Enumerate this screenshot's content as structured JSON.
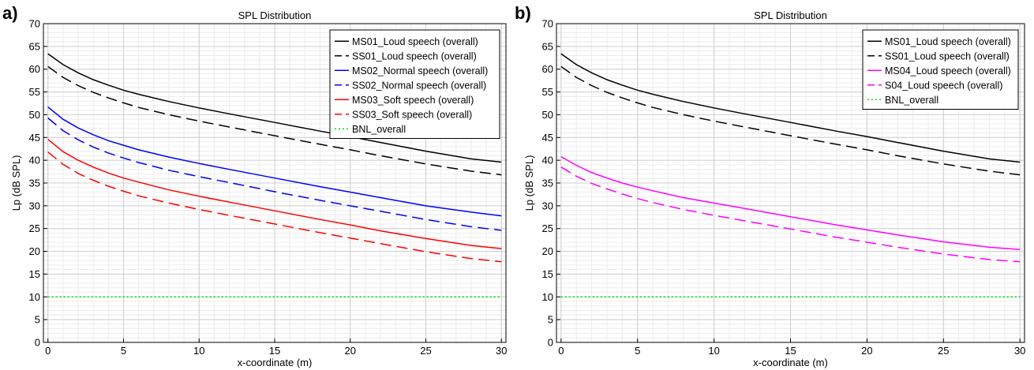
{
  "panels": [
    {
      "panel_label": "a)"
    },
    {
      "panel_label": "b)"
    }
  ],
  "chart_data": [
    {
      "type": "line",
      "title": "SPL Distribution",
      "xlabel": "x-coordinate (m)",
      "ylabel": "Lp (dB SPL)",
      "xlim": [
        -0.3,
        30.3
      ],
      "ylim": [
        0,
        70
      ],
      "xticks": [
        0,
        5,
        10,
        15,
        20,
        25,
        30
      ],
      "yticks": [
        0,
        5,
        10,
        15,
        20,
        25,
        30,
        35,
        40,
        45,
        50,
        55,
        60,
        65,
        70
      ],
      "grid": true,
      "legend_position": "top-right",
      "x": [
        0,
        1,
        2,
        3,
        4,
        5,
        6,
        8,
        10,
        12,
        15,
        18,
        20,
        22,
        25,
        28,
        30
      ],
      "series": [
        {
          "name": "MS01_Loud speech (overall)",
          "color": "#000000",
          "dash": "solid",
          "values": [
            63.4,
            61.0,
            59.2,
            57.7,
            56.5,
            55.4,
            54.5,
            52.9,
            51.5,
            50.2,
            48.3,
            46.4,
            45.2,
            43.9,
            42.0,
            40.3,
            39.6
          ]
        },
        {
          "name": "SS01_Loud speech (overall)",
          "color": "#000000",
          "dash": "dashed",
          "values": [
            60.6,
            58.2,
            56.4,
            54.9,
            53.7,
            52.6,
            51.6,
            50.0,
            48.6,
            47.3,
            45.4,
            43.5,
            42.3,
            41.0,
            39.2,
            37.6,
            36.8
          ]
        },
        {
          "name": "MS02_Normal speech (overall)",
          "color": "#0000ff",
          "dash": "solid",
          "values": [
            51.7,
            49.0,
            47.1,
            45.6,
            44.3,
            43.3,
            42.3,
            40.7,
            39.3,
            38.0,
            36.1,
            34.2,
            33.0,
            31.8,
            30.0,
            28.6,
            27.8
          ]
        },
        {
          "name": "SS02_Normal speech (overall)",
          "color": "#0000ff",
          "dash": "dashed",
          "values": [
            49.3,
            46.5,
            44.5,
            42.9,
            41.6,
            40.5,
            39.5,
            37.8,
            36.4,
            35.1,
            33.1,
            31.2,
            30.0,
            28.8,
            27.0,
            25.4,
            24.6
          ]
        },
        {
          "name": "MS03_Soft speech (overall)",
          "color": "#ff0000",
          "dash": "solid",
          "values": [
            44.6,
            41.9,
            40.0,
            38.5,
            37.2,
            36.1,
            35.2,
            33.5,
            32.1,
            30.8,
            28.9,
            27.0,
            25.8,
            24.5,
            22.8,
            21.3,
            20.6
          ]
        },
        {
          "name": "SS03_Soft speech (overall)",
          "color": "#ff0000",
          "dash": "dashed",
          "values": [
            41.8,
            39.1,
            37.1,
            35.6,
            34.3,
            33.2,
            32.2,
            30.6,
            29.2,
            27.9,
            26.0,
            24.1,
            22.9,
            21.7,
            19.9,
            18.4,
            17.7
          ]
        },
        {
          "name": "BNL_overall",
          "color": "#00dd00",
          "dash": "dotted",
          "values": [
            10,
            10,
            10,
            10,
            10,
            10,
            10,
            10,
            10,
            10,
            10,
            10,
            10,
            10,
            10,
            10,
            10
          ]
        }
      ]
    },
    {
      "type": "line",
      "title": "SPL Distribution",
      "xlabel": "x-coordinate (m)",
      "ylabel": "Lp (dB SPL)",
      "xlim": [
        -0.3,
        30.3
      ],
      "ylim": [
        0,
        70
      ],
      "xticks": [
        0,
        5,
        10,
        15,
        20,
        25,
        30
      ],
      "yticks": [
        0,
        5,
        10,
        15,
        20,
        25,
        30,
        35,
        40,
        45,
        50,
        55,
        60,
        65,
        70
      ],
      "grid": true,
      "legend_position": "top-right",
      "x": [
        0,
        1,
        2,
        3,
        4,
        5,
        6,
        8,
        10,
        12,
        15,
        18,
        20,
        22,
        25,
        28,
        30
      ],
      "series": [
        {
          "name": "MS01_Loud speech (overall)",
          "color": "#000000",
          "dash": "solid",
          "values": [
            63.4,
            61.0,
            59.2,
            57.7,
            56.5,
            55.4,
            54.5,
            52.9,
            51.5,
            50.2,
            48.3,
            46.4,
            45.2,
            43.9,
            42.0,
            40.3,
            39.6
          ]
        },
        {
          "name": "SS01_Loud speech (overall)",
          "color": "#000000",
          "dash": "dashed",
          "values": [
            60.6,
            58.2,
            56.4,
            54.9,
            53.7,
            52.6,
            51.6,
            50.0,
            48.6,
            47.3,
            45.4,
            43.5,
            42.3,
            41.0,
            39.2,
            37.6,
            36.8
          ]
        },
        {
          "name": "MS04_Loud speech (overall)",
          "color": "#ff00ff",
          "dash": "solid",
          "values": [
            40.8,
            38.9,
            37.3,
            36.1,
            35.0,
            34.1,
            33.3,
            31.8,
            30.6,
            29.4,
            27.6,
            25.8,
            24.7,
            23.6,
            22.1,
            20.9,
            20.4
          ]
        },
        {
          "name": "S04_Loud speech (overall)",
          "color": "#ff00ff",
          "dash": "dashed",
          "values": [
            38.5,
            36.5,
            34.9,
            33.7,
            32.6,
            31.6,
            30.7,
            29.2,
            27.9,
            26.7,
            24.9,
            23.1,
            22.0,
            20.9,
            19.4,
            18.2,
            17.7
          ]
        },
        {
          "name": "BNL_overall",
          "color": "#00dd00",
          "dash": "dotted",
          "values": [
            10,
            10,
            10,
            10,
            10,
            10,
            10,
            10,
            10,
            10,
            10,
            10,
            10,
            10,
            10,
            10,
            10
          ]
        }
      ]
    }
  ]
}
